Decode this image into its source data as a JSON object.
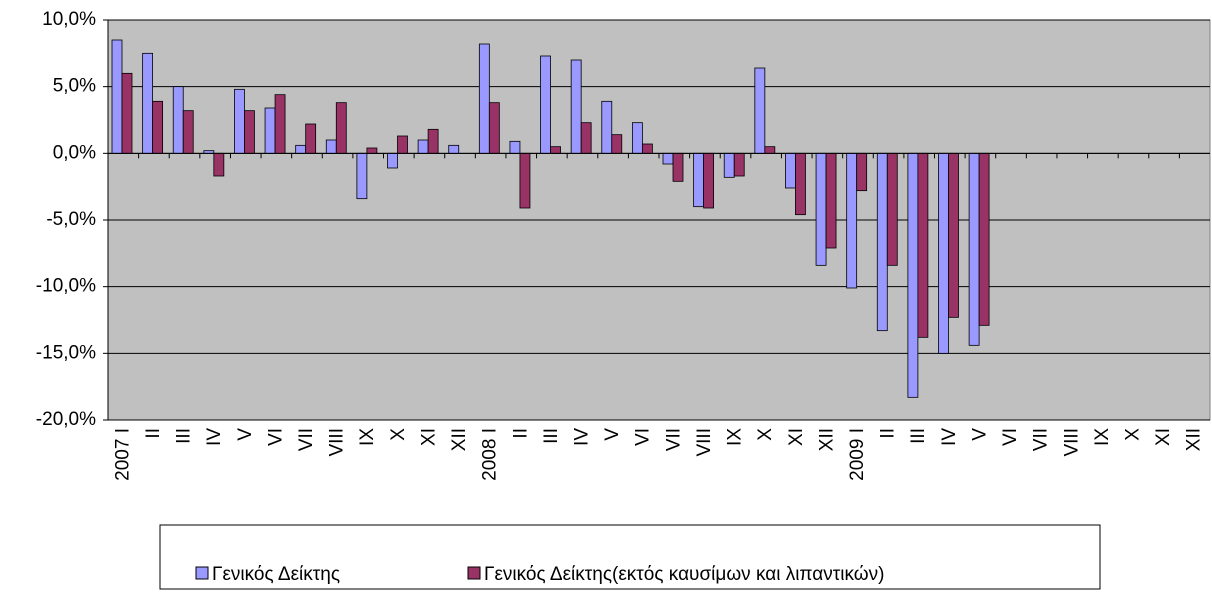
{
  "chart_data": {
    "type": "bar",
    "categories": [
      "2007 I",
      "II",
      "III",
      "IV",
      "V",
      "VI",
      "VII",
      "VIII",
      "IX",
      "X",
      "XI",
      "XII",
      "2008 I",
      "II",
      "III",
      "IV",
      "V",
      "VI",
      "VII",
      "VIII",
      "IX",
      "X",
      "XI",
      "XII",
      "2009 I",
      "II",
      "III",
      "IV",
      "V",
      "VI",
      "VII",
      "VIII",
      "IX",
      "X",
      "XI",
      "XII"
    ],
    "series": [
      {
        "name": "Γενικός Δείκτης",
        "color": "#9999ff",
        "values": [
          8.5,
          7.5,
          5.0,
          0.2,
          4.8,
          3.4,
          0.6,
          1.0,
          -3.4,
          -1.1,
          1.0,
          0.6,
          8.2,
          0.9,
          7.3,
          7.0,
          3.9,
          2.3,
          -0.8,
          -4.0,
          -1.8,
          6.4,
          -2.6,
          -8.4,
          -10.1,
          -13.3,
          -18.3,
          -15.0,
          -14.4,
          null,
          null,
          null,
          null,
          null,
          null,
          null
        ]
      },
      {
        "name": "Γενικός Δείκτης(εκτός καυσίμων και λιπαντικών)",
        "color": "#993366",
        "values": [
          6.0,
          3.9,
          3.2,
          -1.7,
          3.2,
          4.4,
          2.2,
          3.8,
          0.4,
          1.3,
          1.8,
          0.0,
          3.8,
          -4.1,
          0.5,
          2.3,
          1.4,
          0.7,
          -2.1,
          -4.1,
          -1.7,
          0.5,
          -4.6,
          -7.1,
          -2.8,
          -8.4,
          -13.8,
          -12.3,
          -12.9,
          null,
          null,
          null,
          null,
          null,
          null,
          null
        ]
      }
    ],
    "ylim": [
      -20,
      10
    ],
    "yticks": [
      {
        "value": -20,
        "label": "-20,0%"
      },
      {
        "value": -15,
        "label": "-15,0%"
      },
      {
        "value": -10,
        "label": "-10,0%"
      },
      {
        "value": -5,
        "label": "-5,0%"
      },
      {
        "value": 0,
        "label": "0,0%"
      },
      {
        "value": 5,
        "label": "5,0%"
      },
      {
        "value": 10,
        "label": "10,0%"
      }
    ],
    "grid": true,
    "legend": "bottom"
  }
}
